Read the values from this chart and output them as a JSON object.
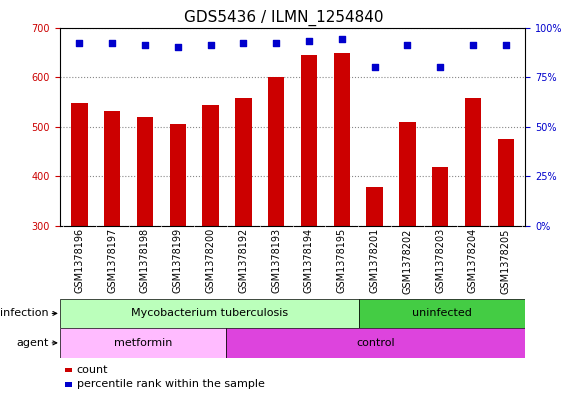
{
  "title": "GDS5436 / ILMN_1254840",
  "samples": [
    "GSM1378196",
    "GSM1378197",
    "GSM1378198",
    "GSM1378199",
    "GSM1378200",
    "GSM1378192",
    "GSM1378193",
    "GSM1378194",
    "GSM1378195",
    "GSM1378201",
    "GSM1378202",
    "GSM1378203",
    "GSM1378204",
    "GSM1378205"
  ],
  "counts": [
    548,
    532,
    520,
    505,
    543,
    558,
    600,
    645,
    648,
    378,
    510,
    418,
    557,
    476
  ],
  "percentiles": [
    92,
    92,
    91,
    90,
    91,
    92,
    92,
    93,
    94,
    80,
    91,
    80,
    91,
    91
  ],
  "ylim_left": [
    300,
    700
  ],
  "ylim_right": [
    0,
    100
  ],
  "yticks_left": [
    300,
    400,
    500,
    600,
    700
  ],
  "yticks_right": [
    0,
    25,
    50,
    75,
    100
  ],
  "bar_color": "#cc0000",
  "dot_color": "#0000cc",
  "grid_color": "#888888",
  "infection_groups": [
    {
      "label": "Mycobacterium tuberculosis",
      "start": 0,
      "end": 9,
      "color": "#bbffbb"
    },
    {
      "label": "uninfected",
      "start": 9,
      "end": 14,
      "color": "#44cc44"
    }
  ],
  "agent_groups": [
    {
      "label": "metformin",
      "start": 0,
      "end": 5,
      "color": "#ffbbff"
    },
    {
      "label": "control",
      "start": 5,
      "end": 14,
      "color": "#dd44dd"
    }
  ],
  "infection_label": "infection",
  "agent_label": "agent",
  "legend_count_label": "count",
  "legend_percentile_label": "percentile rank within the sample",
  "plot_bg_color": "#ffffff",
  "xtick_bg_color": "#c8c8c8",
  "title_fontsize": 11,
  "tick_fontsize": 7,
  "label_fontsize": 8,
  "annotation_fontsize": 8
}
